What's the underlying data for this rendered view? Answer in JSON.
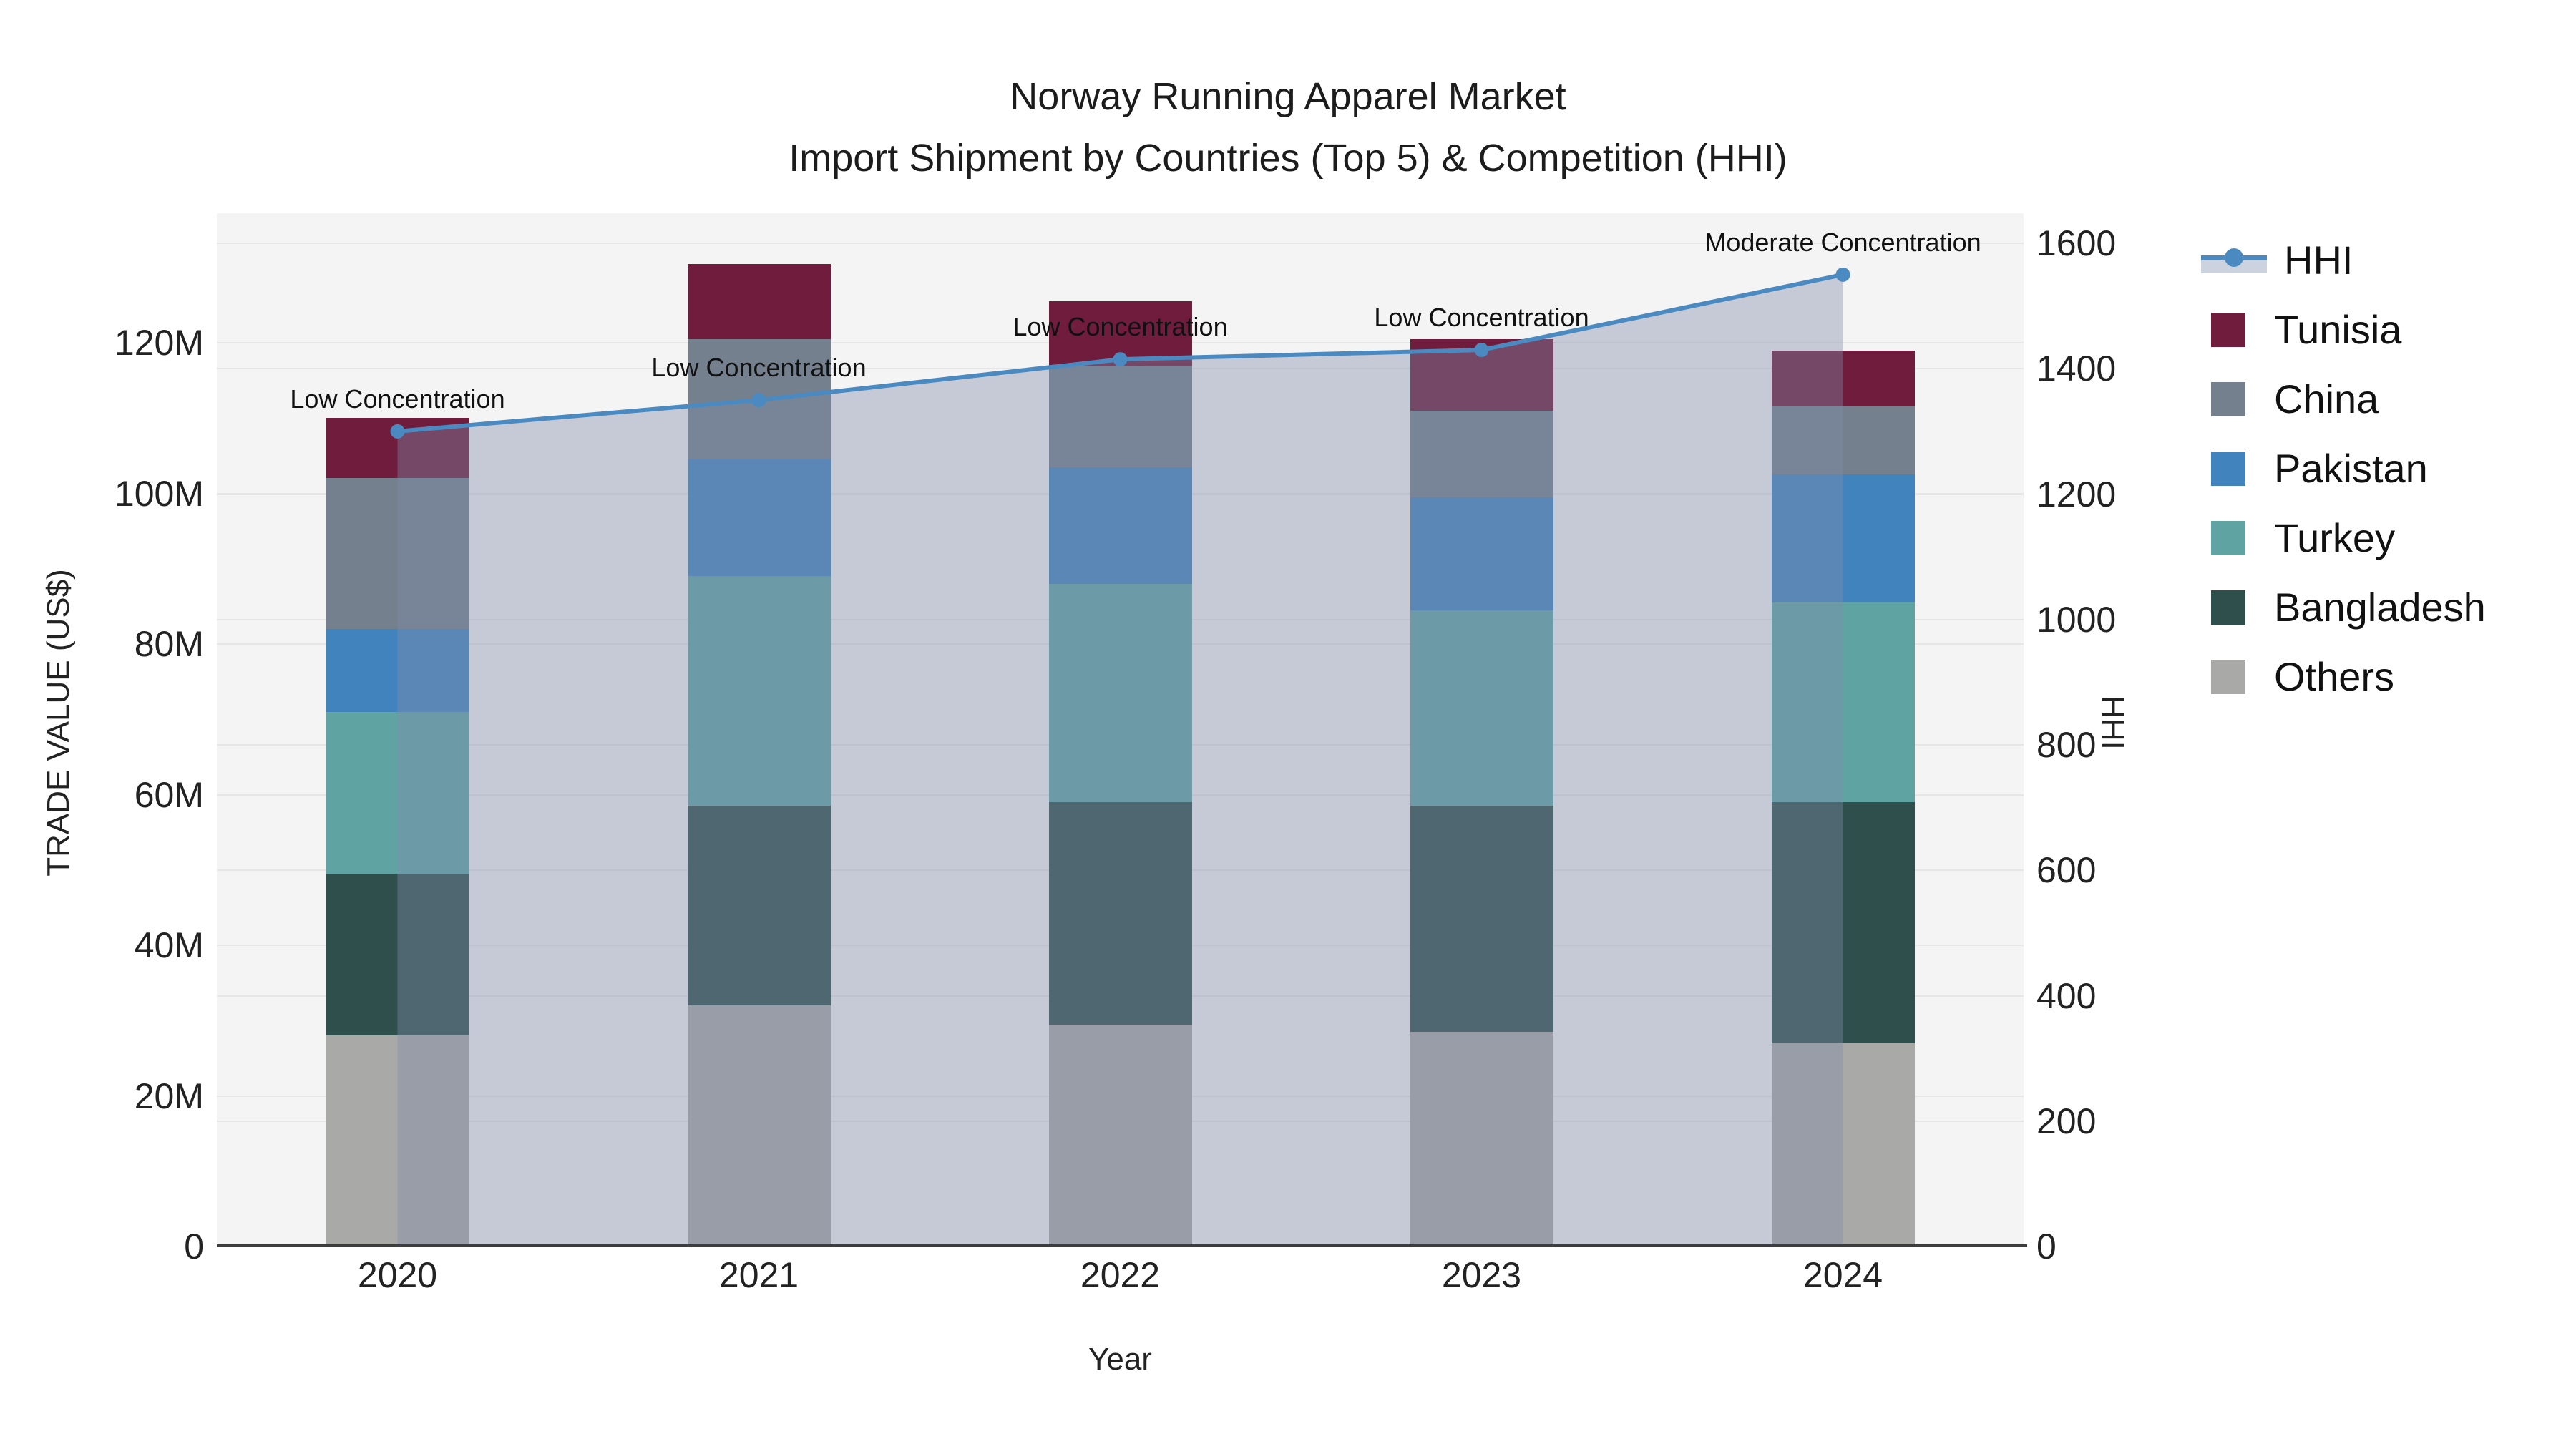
{
  "title": {
    "line1": "Norway Running Apparel Market",
    "line2": "Import Shipment by Countries (Top 5) & Competition (HHI)"
  },
  "axis_titles": {
    "left": "TRADE VALUE (US$)",
    "bottom": "Year",
    "right": "HHI"
  },
  "colors": {
    "plot_bg": "#f4f4f4",
    "gridline": "#e6e6e6",
    "zero_line": "#3d3d3d",
    "hhi_line": "#4a8ac0",
    "hhi_area_fill": "rgba(128,140,170,0.40)",
    "hhi_legend_band": "#ccd3de",
    "annotation_text": "#111111"
  },
  "legend": {
    "items": [
      {
        "label": "HHI",
        "type": "line",
        "color": "#4a8ac0"
      },
      {
        "label": "Tunisia",
        "type": "box",
        "color": "#701c3c"
      },
      {
        "label": "China",
        "type": "box",
        "color": "#74808e"
      },
      {
        "label": "Pakistan",
        "type": "box",
        "color": "#4184bd"
      },
      {
        "label": "Turkey",
        "type": "box",
        "color": "#60a3a3"
      },
      {
        "label": "Bangladesh",
        "type": "box",
        "color": "#2f4f4c"
      },
      {
        "label": "Others",
        "type": "box",
        "color": "#a9a9a7"
      }
    ]
  },
  "chart_data": {
    "type": "bar",
    "subtype": "stacked bars with overlaid line (secondary axis) and translucent area fill",
    "categories": [
      "2020",
      "2021",
      "2022",
      "2023",
      "2024"
    ],
    "xlabel": "Year",
    "ylabel_left": "TRADE VALUE (US$)",
    "ylabel_right": "HHI",
    "bar_units": "millions US$",
    "series": [
      {
        "name": "Others",
        "color": "#a9a9a7",
        "values": [
          28,
          32,
          29.5,
          28.5,
          27
        ]
      },
      {
        "name": "Bangladesh",
        "color": "#2f4f4c",
        "values": [
          21.5,
          26.5,
          29.5,
          30,
          32
        ]
      },
      {
        "name": "Turkey",
        "color": "#60a3a3",
        "values": [
          21.5,
          30.5,
          29,
          26,
          26.5
        ]
      },
      {
        "name": "Pakistan",
        "color": "#4184bd",
        "values": [
          11,
          15.5,
          15.5,
          15,
          17
        ]
      },
      {
        "name": "China",
        "color": "#74808e",
        "values": [
          20,
          16,
          13.5,
          11.5,
          9
        ]
      },
      {
        "name": "Tunisia",
        "color": "#701c3c",
        "values": [
          8,
          10,
          8.5,
          9.5,
          7.5
        ]
      }
    ],
    "bar_totals": [
      110,
      130.5,
      125.5,
      120.5,
      119
    ],
    "line": {
      "name": "HHI",
      "axis": "right",
      "values": [
        1300,
        1350,
        1415,
        1430,
        1550
      ],
      "color": "#4a8ac0",
      "area_fill": "rgba(128,140,170,0.40)"
    },
    "annotations": [
      {
        "x": "2020",
        "text": "Low Concentration"
      },
      {
        "x": "2021",
        "text": "Low Concentration"
      },
      {
        "x": "2022",
        "text": "Low Concentration"
      },
      {
        "x": "2023",
        "text": "Low Concentration"
      },
      {
        "x": "2024",
        "text": "Moderate Concentration"
      }
    ],
    "y_left": {
      "range": [
        0,
        137.2
      ],
      "ticks": [
        0,
        20,
        40,
        60,
        80,
        100,
        120
      ],
      "tick_labels": [
        "0",
        "20M",
        "40M",
        "60M",
        "80M",
        "100M",
        "120M"
      ]
    },
    "y_right": {
      "range": [
        0,
        1648
      ],
      "ticks": [
        0,
        200,
        400,
        600,
        800,
        1000,
        1200,
        1400,
        1600
      ],
      "tick_labels": [
        "0",
        "200",
        "400",
        "600",
        "800",
        "1000",
        "1200",
        "1400",
        "1600"
      ]
    },
    "grid": true,
    "legend_position": "right"
  }
}
